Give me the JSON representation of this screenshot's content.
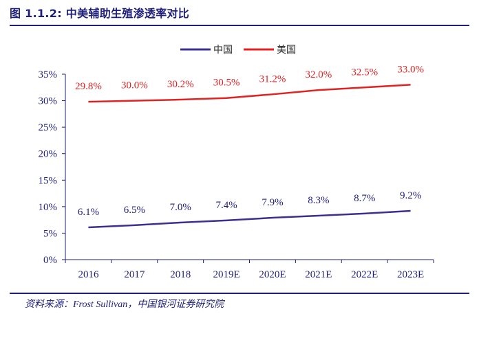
{
  "header": {
    "title": "图 1.1.2: 中美辅助生殖渗透率对比"
  },
  "footer": {
    "source": "资料来源：Frost Sullivan，中国银河证券研究院"
  },
  "colors": {
    "china": "#3b2f8f",
    "usa": "#e02222",
    "axis": "#1f1f7a",
    "brand": "#1f1f7a"
  },
  "chart_data": {
    "type": "line",
    "categories": [
      "2016",
      "2017",
      "2018",
      "2019E",
      "2020E",
      "2021E",
      "2022E",
      "2023E"
    ],
    "ylim": [
      0,
      35
    ],
    "yticks": [
      "0%",
      "5%",
      "10%",
      "15%",
      "20%",
      "25%",
      "30%",
      "35%"
    ],
    "legend_position": "top-center",
    "grid": false,
    "series": [
      {
        "name": "中国",
        "values": [
          6.1,
          6.5,
          7.0,
          7.4,
          7.9,
          8.3,
          8.7,
          9.2
        ],
        "labels": [
          "6.1%",
          "6.5%",
          "7.0%",
          "7.4%",
          "7.9%",
          "8.3%",
          "8.7%",
          "9.2%"
        ]
      },
      {
        "name": "美国",
        "values": [
          29.8,
          30.0,
          30.2,
          30.5,
          31.2,
          32.0,
          32.5,
          33.0
        ],
        "labels": [
          "29.8%",
          "30.0%",
          "30.2%",
          "30.5%",
          "31.2%",
          "32.0%",
          "32.5%",
          "33.0%"
        ]
      }
    ]
  }
}
